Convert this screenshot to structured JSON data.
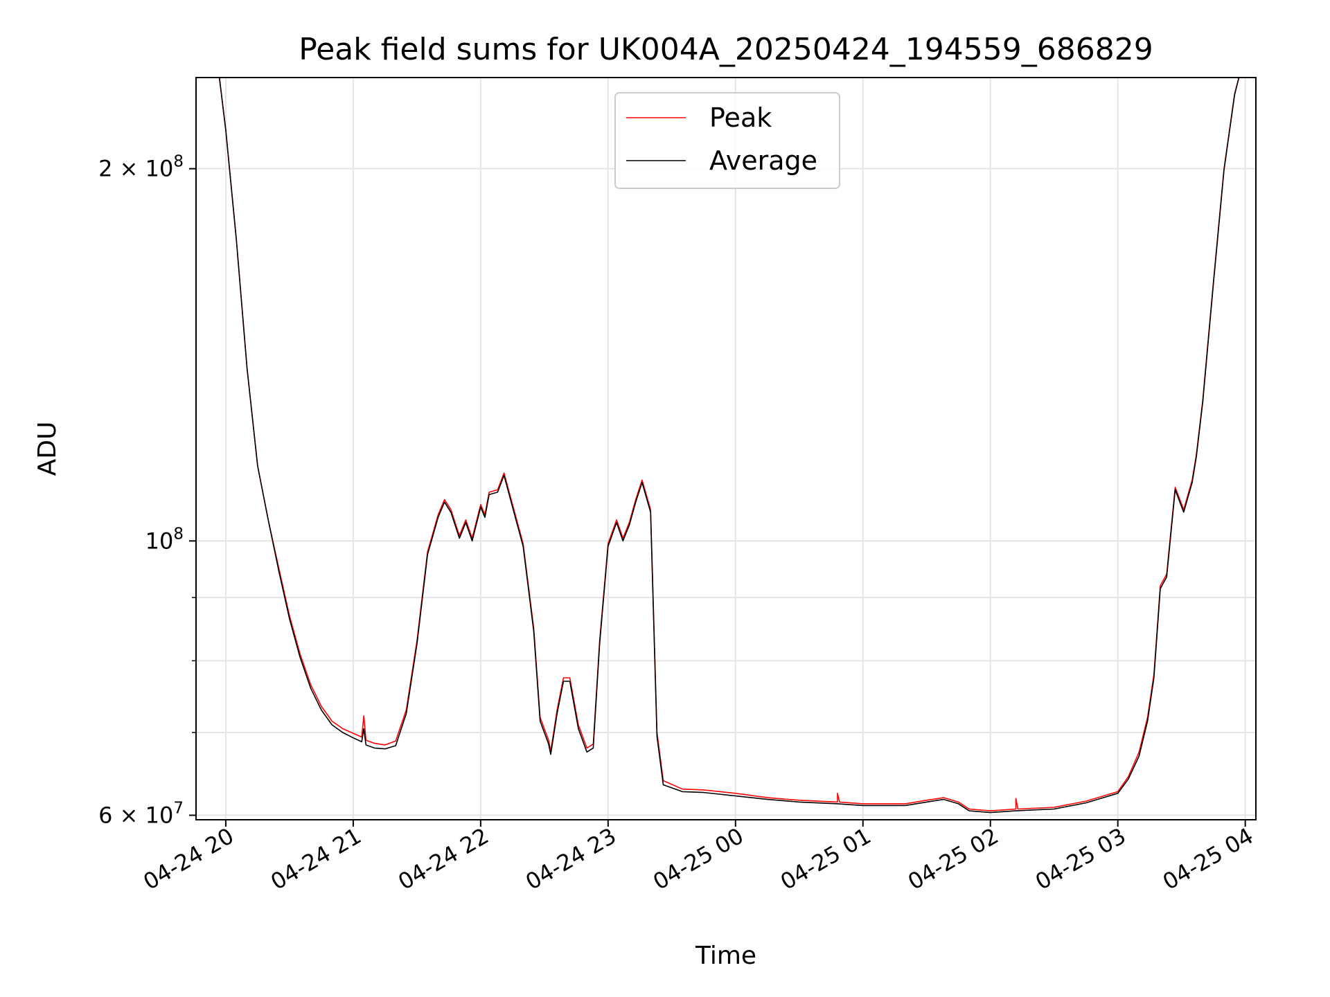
{
  "chart_data": {
    "type": "line",
    "title": "Peak field sums for UK004A_20250424_194559_686829",
    "xlabel": "Time",
    "ylabel": "ADU",
    "yscale": "log",
    "ylim": [
      59500000,
      237000000
    ],
    "xlim": [
      "2025-04-24 19:46",
      "2025-04-25 04:05"
    ],
    "x_ticks": [
      "2025-04-24 20:00",
      "2025-04-24 21:00",
      "2025-04-24 22:00",
      "2025-04-24 23:00",
      "2025-04-25 00:00",
      "2025-04-25 01:00",
      "2025-04-25 02:00",
      "2025-04-25 03:00",
      "2025-04-25 04:00"
    ],
    "x_tick_labels": [
      "04-24 20",
      "04-24 21",
      "04-24 22",
      "04-24 23",
      "04-25 00",
      "04-25 01",
      "04-25 02",
      "04-25 03",
      "04-25 04"
    ],
    "y_major_ticks": [
      {
        "value": 60000000,
        "mantissa": "6",
        "exp": "7"
      },
      {
        "value": 100000000,
        "mantissa": "",
        "exp": "8"
      },
      {
        "value": 200000000,
        "mantissa": "2",
        "exp": "8"
      }
    ],
    "y_minor_ticks": [
      70000000,
      80000000,
      90000000
    ],
    "grid": true,
    "legend": {
      "placement": "upper-center"
    },
    "series": [
      {
        "name": "Peak",
        "color": "#ff0000",
        "points": [
          [
            "2025-04-24 19:46",
            237000000
          ],
          [
            "2025-04-24 19:57",
            237000000
          ],
          [
            "2025-04-24 20:00",
            215000000
          ],
          [
            "2025-04-24 20:05",
            175000000
          ],
          [
            "2025-04-24 20:10",
            138000000
          ],
          [
            "2025-04-24 20:15",
            115000000
          ],
          [
            "2025-04-24 20:20",
            104000000
          ],
          [
            "2025-04-24 20:25",
            95000000
          ],
          [
            "2025-04-24 20:30",
            87000000
          ],
          [
            "2025-04-24 20:35",
            81000000
          ],
          [
            "2025-04-24 20:40",
            76500000
          ],
          [
            "2025-04-24 20:45",
            73500000
          ],
          [
            "2025-04-24 20:50",
            71500000
          ],
          [
            "2025-04-24 20:55",
            70500000
          ],
          [
            "2025-04-24 21:00",
            69900000
          ],
          [
            "2025-04-24 21:04",
            69400000
          ],
          [
            "2025-04-24 21:05",
            72200000
          ],
          [
            "2025-04-24 21:06",
            69000000
          ],
          [
            "2025-04-24 21:10",
            68600000
          ],
          [
            "2025-04-24 21:15",
            68400000
          ],
          [
            "2025-04-24 21:20",
            68900000
          ],
          [
            "2025-04-24 21:25",
            73000000
          ],
          [
            "2025-04-24 21:30",
            83000000
          ],
          [
            "2025-04-24 21:35",
            98000000
          ],
          [
            "2025-04-24 21:40",
            105000000
          ],
          [
            "2025-04-24 21:43",
            108000000
          ],
          [
            "2025-04-24 21:46",
            106000000
          ],
          [
            "2025-04-24 21:50",
            101000000
          ],
          [
            "2025-04-24 21:53",
            104000000
          ],
          [
            "2025-04-24 21:56",
            100500000
          ],
          [
            "2025-04-24 22:00",
            107000000
          ],
          [
            "2025-04-24 22:02",
            105000000
          ],
          [
            "2025-04-24 22:04",
            109500000
          ],
          [
            "2025-04-24 22:08",
            110000000
          ],
          [
            "2025-04-24 22:11",
            113500000
          ],
          [
            "2025-04-24 22:15",
            107000000
          ],
          [
            "2025-04-24 22:20",
            99500000
          ],
          [
            "2025-04-24 22:25",
            85000000
          ],
          [
            "2025-04-24 22:28",
            72000000
          ],
          [
            "2025-04-24 22:32",
            69000000
          ],
          [
            "2025-04-24 22:33",
            67600000
          ],
          [
            "2025-04-24 22:36",
            73000000
          ],
          [
            "2025-04-24 22:39",
            77500000
          ],
          [
            "2025-04-24 22:42",
            77500000
          ],
          [
            "2025-04-24 22:46",
            71000000
          ],
          [
            "2025-04-24 22:50",
            68000000
          ],
          [
            "2025-04-24 22:53",
            68500000
          ],
          [
            "2025-04-24 22:56",
            83000000
          ],
          [
            "2025-04-24 23:00",
            99500000
          ],
          [
            "2025-04-24 23:04",
            104000000
          ],
          [
            "2025-04-24 23:07",
            100500000
          ],
          [
            "2025-04-24 23:10",
            103500000
          ],
          [
            "2025-04-24 23:13",
            108000000
          ],
          [
            "2025-04-24 23:16",
            112000000
          ],
          [
            "2025-04-24 23:20",
            106000000
          ],
          [
            "2025-04-24 23:23",
            70000000
          ],
          [
            "2025-04-24 23:26",
            64000000
          ],
          [
            "2025-04-24 23:35",
            63000000
          ],
          [
            "2025-04-24 23:45",
            62900000
          ],
          [
            "2025-04-25 00:00",
            62500000
          ],
          [
            "2025-04-25 00:15",
            62000000
          ],
          [
            "2025-04-25 00:30",
            61700000
          ],
          [
            "2025-04-25 00:48",
            61500000
          ],
          [
            "2025-04-25 00:48",
            62500000
          ],
          [
            "2025-04-25 00:49",
            61500000
          ],
          [
            "2025-04-25 01:00",
            61300000
          ],
          [
            "2025-04-25 01:20",
            61300000
          ],
          [
            "2025-04-25 01:30",
            61700000
          ],
          [
            "2025-04-25 01:38",
            62000000
          ],
          [
            "2025-04-25 01:45",
            61500000
          ],
          [
            "2025-04-25 01:50",
            60700000
          ],
          [
            "2025-04-25 02:00",
            60500000
          ],
          [
            "2025-04-25 02:12",
            60700000
          ],
          [
            "2025-04-25 02:12",
            61900000
          ],
          [
            "2025-04-25 02:13",
            60700000
          ],
          [
            "2025-04-25 02:30",
            60900000
          ],
          [
            "2025-04-25 02:45",
            61600000
          ],
          [
            "2025-04-25 03:00",
            62700000
          ],
          [
            "2025-04-25 03:05",
            64500000
          ],
          [
            "2025-04-25 03:10",
            67500000
          ],
          [
            "2025-04-25 03:14",
            72000000
          ],
          [
            "2025-04-25 03:17",
            78000000
          ],
          [
            "2025-04-25 03:20",
            92000000
          ],
          [
            "2025-04-25 03:23",
            94000000
          ],
          [
            "2025-04-25 03:27",
            110500000
          ],
          [
            "2025-04-25 03:31",
            106000000
          ],
          [
            "2025-04-25 03:35",
            112000000
          ],
          [
            "2025-04-25 03:37",
            117500000
          ],
          [
            "2025-04-25 03:40",
            130000000
          ],
          [
            "2025-04-25 03:45",
            162000000
          ],
          [
            "2025-04-25 03:50",
            200000000
          ],
          [
            "2025-04-25 03:55",
            230000000
          ],
          [
            "2025-04-25 03:57",
            237000000
          ],
          [
            "2025-04-25 04:00",
            237000000
          ]
        ]
      },
      {
        "name": "Average",
        "color": "#000000",
        "points": [
          [
            "2025-04-24 19:46",
            237000000
          ],
          [
            "2025-04-24 19:57",
            237000000
          ],
          [
            "2025-04-24 20:00",
            215000000
          ],
          [
            "2025-04-24 20:05",
            175000000
          ],
          [
            "2025-04-24 20:10",
            138000000
          ],
          [
            "2025-04-24 20:15",
            115000000
          ],
          [
            "2025-04-24 20:20",
            104000000
          ],
          [
            "2025-04-24 20:25",
            94500000
          ],
          [
            "2025-04-24 20:30",
            86500000
          ],
          [
            "2025-04-24 20:35",
            80500000
          ],
          [
            "2025-04-24 20:40",
            76000000
          ],
          [
            "2025-04-24 20:45",
            73000000
          ],
          [
            "2025-04-24 20:50",
            71000000
          ],
          [
            "2025-04-24 20:55",
            70000000
          ],
          [
            "2025-04-24 21:00",
            69300000
          ],
          [
            "2025-04-24 21:04",
            68800000
          ],
          [
            "2025-04-24 21:05",
            70500000
          ],
          [
            "2025-04-24 21:06",
            68400000
          ],
          [
            "2025-04-24 21:10",
            68000000
          ],
          [
            "2025-04-24 21:15",
            67900000
          ],
          [
            "2025-04-24 21:20",
            68300000
          ],
          [
            "2025-04-24 21:25",
            72500000
          ],
          [
            "2025-04-24 21:30",
            82500000
          ],
          [
            "2025-04-24 21:35",
            97500000
          ],
          [
            "2025-04-24 21:40",
            104500000
          ],
          [
            "2025-04-24 21:43",
            107500000
          ],
          [
            "2025-04-24 21:46",
            105500000
          ],
          [
            "2025-04-24 21:50",
            100500000
          ],
          [
            "2025-04-24 21:53",
            103500000
          ],
          [
            "2025-04-24 21:56",
            100000000
          ],
          [
            "2025-04-24 22:00",
            106500000
          ],
          [
            "2025-04-24 22:02",
            104500000
          ],
          [
            "2025-04-24 22:04",
            109000000
          ],
          [
            "2025-04-24 22:08",
            109500000
          ],
          [
            "2025-04-24 22:11",
            113000000
          ],
          [
            "2025-04-24 22:15",
            106500000
          ],
          [
            "2025-04-24 22:20",
            99000000
          ],
          [
            "2025-04-24 22:25",
            84500000
          ],
          [
            "2025-04-24 22:28",
            71500000
          ],
          [
            "2025-04-24 22:32",
            68500000
          ],
          [
            "2025-04-24 22:33",
            67200000
          ],
          [
            "2025-04-24 22:36",
            72500000
          ],
          [
            "2025-04-24 22:39",
            77000000
          ],
          [
            "2025-04-24 22:42",
            77000000
          ],
          [
            "2025-04-24 22:46",
            70500000
          ],
          [
            "2025-04-24 22:50",
            67500000
          ],
          [
            "2025-04-24 22:53",
            68000000
          ],
          [
            "2025-04-24 22:56",
            82500000
          ],
          [
            "2025-04-24 23:00",
            99000000
          ],
          [
            "2025-04-24 23:04",
            103500000
          ],
          [
            "2025-04-24 23:07",
            100000000
          ],
          [
            "2025-04-24 23:10",
            103000000
          ],
          [
            "2025-04-24 23:13",
            107500000
          ],
          [
            "2025-04-24 23:16",
            111500000
          ],
          [
            "2025-04-24 23:20",
            105500000
          ],
          [
            "2025-04-24 23:23",
            69500000
          ],
          [
            "2025-04-24 23:26",
            63500000
          ],
          [
            "2025-04-24 23:35",
            62700000
          ],
          [
            "2025-04-24 23:45",
            62600000
          ],
          [
            "2025-04-25 00:00",
            62200000
          ],
          [
            "2025-04-25 00:15",
            61800000
          ],
          [
            "2025-04-25 00:30",
            61500000
          ],
          [
            "2025-04-25 00:48",
            61300000
          ],
          [
            "2025-04-25 01:00",
            61100000
          ],
          [
            "2025-04-25 01:20",
            61100000
          ],
          [
            "2025-04-25 01:30",
            61500000
          ],
          [
            "2025-04-25 01:38",
            61800000
          ],
          [
            "2025-04-25 01:45",
            61300000
          ],
          [
            "2025-04-25 01:50",
            60500000
          ],
          [
            "2025-04-25 02:00",
            60300000
          ],
          [
            "2025-04-25 02:12",
            60500000
          ],
          [
            "2025-04-25 02:30",
            60700000
          ],
          [
            "2025-04-25 02:45",
            61400000
          ],
          [
            "2025-04-25 03:00",
            62500000
          ],
          [
            "2025-04-25 03:05",
            64200000
          ],
          [
            "2025-04-25 03:10",
            67000000
          ],
          [
            "2025-04-25 03:14",
            71500000
          ],
          [
            "2025-04-25 03:17",
            77500000
          ],
          [
            "2025-04-25 03:20",
            91500000
          ],
          [
            "2025-04-25 03:23",
            93500000
          ],
          [
            "2025-04-25 03:27",
            110000000
          ],
          [
            "2025-04-25 03:31",
            105500000
          ],
          [
            "2025-04-25 03:35",
            111500000
          ],
          [
            "2025-04-25 03:37",
            117000000
          ],
          [
            "2025-04-25 03:40",
            129500000
          ],
          [
            "2025-04-25 03:45",
            161500000
          ],
          [
            "2025-04-25 03:50",
            199500000
          ],
          [
            "2025-04-25 03:55",
            229500000
          ],
          [
            "2025-04-25 03:57",
            237000000
          ],
          [
            "2025-04-25 04:00",
            237000000
          ]
        ]
      }
    ]
  }
}
